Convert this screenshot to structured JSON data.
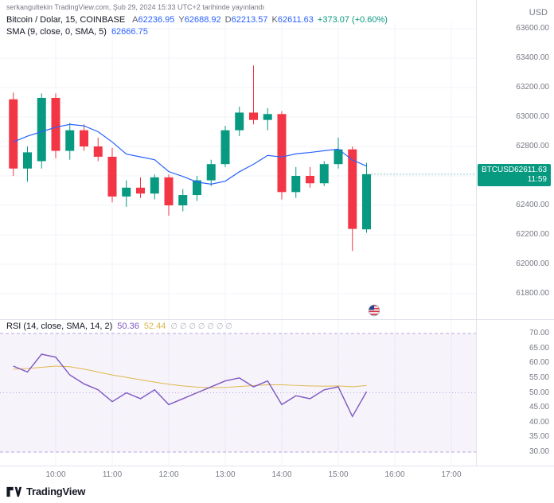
{
  "meta": {
    "publish_line": "serkangultekin TradingView.com, Şub 29, 2024 15:33 UTC+2 tarihinde yayınlandı",
    "currency": "USD"
  },
  "legend": {
    "symbol_title": "Bitcoin / Dolar, 15, COINBASE",
    "ohlc": [
      {
        "label": "A",
        "value": "62236.95"
      },
      {
        "label": "Y",
        "value": "62688.92"
      },
      {
        "label": "D",
        "value": "62213.57"
      },
      {
        "label": "K",
        "value": "62611.63"
      }
    ],
    "change": "+373.07 (+0.60%)",
    "sma_title": "SMA (9, close, 0, SMA, 5)",
    "sma_value": "62666.75"
  },
  "rsi_legend": {
    "title": "RSI (14, close, SMA, 14, 2)",
    "rsi_value": "50.36",
    "ma_value": "52.44",
    "empty_values": "∅ ∅ ∅ ∅ ∅ ∅ ∅"
  },
  "price_label": {
    "symbol": "BTCUSD",
    "price": "62611.63",
    "countdown": "11:59"
  },
  "axes": {
    "price_ticks": [
      "63600.00",
      "63400.00",
      "63200.00",
      "63000.00",
      "62800.00",
      "62400.00",
      "62200.00",
      "62000.00",
      "61800.00"
    ],
    "rsi_ticks": [
      "70.00",
      "65.00",
      "60.00",
      "55.00",
      "50.00",
      "45.00",
      "40.00",
      "35.00",
      "30.00"
    ],
    "time_ticks": [
      "10:00",
      "11:00",
      "12:00",
      "13:00",
      "14:00",
      "15:00",
      "16:00",
      "17:00"
    ]
  },
  "footer": {
    "brand": "TradingView"
  },
  "icons": {
    "logo": "tradingview-logo",
    "event_marker": "us-flag"
  },
  "colors": {
    "up": "#089981",
    "down": "#f23645",
    "sma": "#2962ff",
    "rsi": "#7e57c2",
    "rsi_ma": "#e0b84e",
    "grid": "#f0f3fa",
    "rsi_band_fill": "rgba(126,87,194,0.07)",
    "rsi_band_line": "#b9a6dc",
    "badge_bg": "#089981",
    "text": "#131722",
    "muted": "#787b86"
  },
  "chart_data": [
    {
      "type": "candlestick",
      "title": "Bitcoin / Dolar, 15, COINBASE",
      "interval_minutes": 15,
      "ylabel": "USD",
      "ylim": [
        61800,
        63600
      ],
      "x": [
        "09:15",
        "09:30",
        "09:45",
        "10:00",
        "10:15",
        "10:30",
        "10:45",
        "11:00",
        "11:15",
        "11:30",
        "11:45",
        "12:00",
        "12:15",
        "12:30",
        "12:45",
        "13:00",
        "13:15",
        "13:30",
        "13:45",
        "14:00",
        "14:15",
        "14:30",
        "14:45",
        "15:00",
        "15:15",
        "15:30"
      ],
      "ohlc": [
        [
          63120,
          63165,
          62600,
          62650
        ],
        [
          62650,
          62800,
          62560,
          62760
        ],
        [
          62700,
          63160,
          62650,
          63130
        ],
        [
          63130,
          63160,
          62720,
          62770
        ],
        [
          62770,
          62960,
          62710,
          62910
        ],
        [
          62910,
          62950,
          62770,
          62800
        ],
        [
          62800,
          62860,
          62700,
          62730
        ],
        [
          62730,
          62790,
          62420,
          62460
        ],
        [
          62460,
          62570,
          62390,
          62520
        ],
        [
          62520,
          62590,
          62450,
          62480
        ],
        [
          62480,
          62610,
          62440,
          62590
        ],
        [
          62590,
          62610,
          62330,
          62400
        ],
        [
          62400,
          62510,
          62360,
          62470
        ],
        [
          62470,
          62600,
          62430,
          62570
        ],
        [
          62570,
          62710,
          62530,
          62680
        ],
        [
          62680,
          62940,
          62660,
          62910
        ],
        [
          62910,
          63070,
          62870,
          63030
        ],
        [
          63030,
          63350,
          62950,
          62980
        ],
        [
          62980,
          63060,
          62910,
          63020
        ],
        [
          63020,
          63040,
          62440,
          62490
        ],
        [
          62490,
          62660,
          62450,
          62600
        ],
        [
          62600,
          62660,
          62520,
          62550
        ],
        [
          62550,
          62700,
          62530,
          62680
        ],
        [
          62680,
          62860,
          62650,
          62780
        ],
        [
          62780,
          62800,
          62090,
          62240
        ],
        [
          62236.95,
          62688.92,
          62213.57,
          62611.63
        ]
      ],
      "sma9": [
        62830,
        62870,
        62900,
        62930,
        62950,
        62940,
        62900,
        62830,
        62748,
        62729,
        62710,
        62629,
        62596,
        62558,
        62544,
        62564,
        62628,
        62679,
        62739,
        62728,
        62750,
        62759,
        62771,
        62782,
        62708,
        62666.75
      ],
      "last_bar": {
        "open": 62236.95,
        "high": 62688.92,
        "low": 62213.57,
        "close": 62611.63,
        "change": "+373.07 (+0.60%)"
      }
    },
    {
      "type": "line",
      "title": "RSI (14, close, SMA, 14, 2)",
      "ylim": [
        30,
        70
      ],
      "bands": {
        "upper": 70,
        "middle": 50,
        "lower": 30
      },
      "x": [
        "09:15",
        "09:30",
        "09:45",
        "10:00",
        "10:15",
        "10:30",
        "10:45",
        "11:00",
        "11:15",
        "11:30",
        "11:45",
        "12:00",
        "12:15",
        "12:30",
        "12:45",
        "13:00",
        "13:15",
        "13:30",
        "13:45",
        "14:00",
        "14:15",
        "14:30",
        "14:45",
        "15:00",
        "15:15",
        "15:30"
      ],
      "series": [
        {
          "name": "RSI",
          "color": "#7e57c2",
          "values": [
            59,
            57,
            63,
            62,
            56,
            53,
            51,
            47,
            50,
            48,
            51,
            46,
            48,
            50,
            52,
            54,
            55,
            52,
            54,
            46,
            49,
            48,
            51,
            52,
            42,
            50.36
          ]
        },
        {
          "name": "RSI-based MA",
          "color": "#e0b84e",
          "values": [
            58,
            58.2,
            58.6,
            59,
            58.8,
            58,
            57,
            56,
            55.2,
            54.4,
            53.6,
            52.9,
            52.3,
            51.9,
            51.7,
            51.8,
            52.1,
            52.4,
            52.7,
            52.7,
            52.5,
            52.3,
            52.2,
            52.3,
            52,
            52.44
          ]
        }
      ]
    }
  ]
}
